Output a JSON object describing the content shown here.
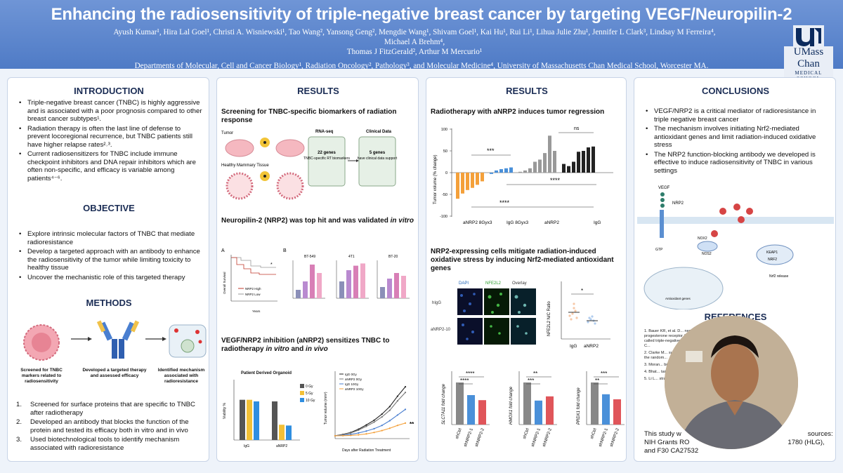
{
  "header": {
    "title": "Enhancing the radiosensitivity of triple-negative breast cancer by targeting VEGF/Neuropilin-2",
    "authors_line1": "Ayush Kumar¹, Hira Lal Goel¹, Christi A. Wisniewski¹, Tao Wang², Yansong Geng², Mengdie Wang¹, Shivam Goel¹, Kai Hu¹, Rui Li¹, Lihua Julie Zhu¹, Jennifer L Clark³, Lindsay M Ferreira⁴, Michael A Brehm⁴,",
    "authors_line2": "Thomas J FitzGerald², Arthur M Mercurio¹",
    "affiliations": "Departments of Molecular, Cell and Cancer Biology¹, Radiation Oncology², Pathology³, and Molecular Medicine⁴, University of Massachusetts Chan Medical School, Worcester MA.",
    "logo_text": "UMass Chan",
    "logo_sub": "MEDICAL SCHOOL"
  },
  "intro": {
    "title": "INTRODUCTION",
    "bullets": [
      "Triple-negative breast cancer (TNBC) is highly aggressive and is associated with a poor prognosis compared to other breast cancer subtypes¹.",
      "Radiation therapy is often the last line of defense to prevent locoregional recurrence, but TNBC patients still have higher relapse rates²˒³.",
      "Current radiosensitizers for TNBC include immune checkpoint inhibitors and DNA repair inhibitors which are often non-specific, and efficacy is variable among patients⁴⁻⁶."
    ]
  },
  "objective": {
    "title": "OBJECTIVE",
    "bullets": [
      "Explore intrinsic molecular factors of TNBC that mediate radioresistance",
      "Develop a targeted approach with an antibody to enhance the radiosensitivity of the tumor while limiting toxicity to healthy tissue",
      "Uncover the mechanistic role of this targeted therapy"
    ]
  },
  "methods": {
    "title": "METHODS",
    "captions": [
      "Screened for TNBC markers related to radiosensitivity",
      "Developed a targeted therapy and assessed efficacy",
      "Identified mechanism associated with radioresistance"
    ],
    "steps": [
      "Screened for surface proteins that are specific to TNBC after radiotherapy",
      "Developed an antibody that blocks the function of the protein and tested its efficacy both in vitro and in vivo",
      "Used biotechnological tools to identify mechanism associated with radioresistance"
    ]
  },
  "results1": {
    "title": "RESULTS",
    "s1_title": "Screening for TNBC-specific biomarkers of radiation response",
    "s1": {
      "tumor": "Tumor",
      "healthy": "Healthy Mammary Tissue",
      "rnaseq": "RNA-seq",
      "box1": "22 genes",
      "box1_sub": "TNBC-specific RT biomarkers",
      "clinical": "Clinical Data",
      "box2": "5 genes",
      "box2_sub": "have clinical data support"
    },
    "s2_title": "Neuropilin-2 (NRP2) was top hit and was validated in vitro",
    "s2": {
      "labelA": "A",
      "labelB": "B",
      "km_ylabel": "Overall Survival",
      "km_xlabel": "Years",
      "km_legend_high": "NRP2 High",
      "km_legend_low": "NRP2 Low",
      "panels": [
        "BT-549",
        "4T1",
        "BT-20"
      ],
      "bar_ylabel": "NRP2 Positive Cells (%)"
    },
    "s3_title": "VEGF/NRP2 inhibition (aNRP2) sensitizes TNBC to radiotherapy in vitro and in vivo",
    "s3": {
      "organoid_title": "Patient Derived Organoid",
      "organoid_ylabel": "Viability %",
      "tv_ylabel": "Tumor volume (mm³)",
      "tv_xlabel": "Days after Radiation Treatment",
      "tv_legend": [
        "IgG 0Gy",
        "aNRP2 0Gy",
        "IgG 10Gy",
        "aNRP2 10Gy"
      ],
      "sig": "**"
    }
  },
  "results2": {
    "title": "RESULTS",
    "s1_title": "Radiotherapy with aNRP2 induces tumor regression",
    "waterfall_ylabel": "Tumor volume (% change)",
    "waterfall_xlabels": [
      "aNRP2 8Gyx3",
      "IgG 8Gyx3",
      "aNRP2",
      "IgG"
    ],
    "sig_labels": [
      "***",
      "ns",
      "****",
      "****"
    ],
    "s2_title": "NRP2-expressing cells mitigate radiation-induced oxidative stress by inducing Nrf2-mediated antioxidant genes",
    "img_cols": [
      "DAPI",
      "NFE2L2",
      "Overlay"
    ],
    "img_rows": [
      "hIgG",
      "aNRP2-10"
    ],
    "ratio_ylabel": "NFE2L2 N/C Ratio",
    "ratio_xlabels": [
      "IgG",
      "aNRP2"
    ],
    "ratio_sig": "*",
    "fold_genes": [
      "SLC7A11 fold change",
      "HMOX1 fold change",
      "PRDX1 fold change"
    ],
    "fold_groups": [
      "shCtrl",
      "shNRP2-1",
      "shNRP2-2"
    ]
  },
  "conclusions": {
    "title": "CONCLUSIONS",
    "bullets": [
      "VEGF/NRP2 is a critical mediator of radioresistance in triple negative breast cancer",
      "The mechanism involves initiating Nrf2-mediated antioxidant genes and limit radiation-induced oxidative stress",
      "The NRP2 function-blocking antibody we developed is effective to induce radiosensitivity of TNBC in various settings"
    ],
    "diagram": {
      "vegf": "VEGF",
      "nrp2": "NRP2",
      "nox2": "NOX2",
      "nos2": "NOS2",
      "keap1": "KEAP1",
      "nrf2": "NRF2",
      "nrf2_release": "Nrf2 release",
      "antioxidant": "Antioxidant genes",
      "gtp": "GTP"
    }
  },
  "references": {
    "title": "REFERENCES",
    "items": [
      "1. Bauer KR, et al. D... negative, progesterone receptor (PR)-n... the so-called triple-negative... cancer Registry. C...",
      "2. Clarke M... surgery for early br... of the random...",
      "3. Moran... breast canc...",
      "4. Bhat... targets and... 103566.",
      "5. Li L... strategies to Im..."
    ],
    "funding_a": "This study w",
    "funding_b": "sources:",
    "funding_c": "NIH Grants RO",
    "funding_d": "1780 (HLG),",
    "funding_e": "and F30 CA27532"
  },
  "chart_data": [
    {
      "type": "bar",
      "title": "Patient Derived Organoid",
      "ylabel": "Viability %",
      "categories": [
        "IgG",
        "aNRP2"
      ],
      "series": [
        {
          "name": "0 Gy",
          "values": [
            100,
            96
          ]
        },
        {
          "name": "5 Gy",
          "values": [
            100,
            38
          ]
        },
        {
          "name": "10 Gy",
          "values": [
            96,
            36
          ]
        }
      ],
      "ylim": [
        0,
        150
      ]
    },
    {
      "type": "line",
      "title": "Tumor volume",
      "xlabel": "Days after Radiation Treatment",
      "ylabel": "Tumor volume (mm³)",
      "x": [
        0,
        2,
        4,
        6,
        8,
        10,
        12,
        14,
        16,
        18
      ],
      "series": [
        {
          "name": "IgG 0Gy",
          "values": [
            60,
            90,
            130,
            200,
            290,
            390,
            520,
            680,
            900,
            1100
          ]
        },
        {
          "name": "aNRP2 0Gy",
          "values": [
            60,
            85,
            120,
            180,
            260,
            350,
            460,
            600,
            800,
            980
          ]
        },
        {
          "name": "IgG 10Gy",
          "values": [
            60,
            70,
            90,
            120,
            160,
            210,
            280,
            380,
            500,
            620
          ]
        },
        {
          "name": "aNRP2 10Gy",
          "values": [
            60,
            62,
            68,
            80,
            100,
            130,
            170,
            220,
            280,
            330
          ]
        }
      ],
      "ylim": [
        0,
        1400
      ]
    },
    {
      "type": "bar",
      "title": "Radiotherapy with aNRP2 induces tumor regression",
      "ylabel": "Tumor volume (% change)",
      "groups": [
        {
          "name": "aNRP2 8Gyx3",
          "values": [
            -60,
            -48,
            -40,
            -35,
            -28,
            -20
          ]
        },
        {
          "name": "IgG 8Gyx3",
          "values": [
            -3,
            5,
            8,
            10,
            12
          ]
        },
        {
          "name": "aNRP2",
          "values": [
            2,
            5,
            10,
            25,
            30,
            45,
            85,
            50
          ]
        },
        {
          "name": "IgG",
          "values": [
            20,
            15,
            25,
            48,
            50,
            58,
            60
          ]
        }
      ],
      "ylim": [
        -100,
        100
      ]
    }
  ]
}
